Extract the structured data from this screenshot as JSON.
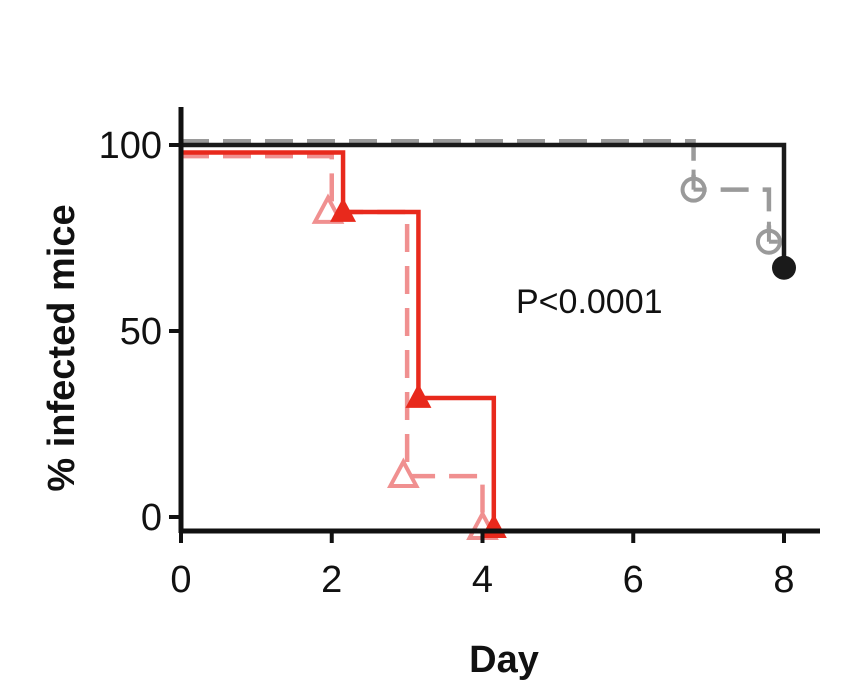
{
  "chart_data": {
    "type": "line",
    "subtype": "kaplan-meier step",
    "xlabel": "Day",
    "ylabel": "% infected mice",
    "xlim": [
      0,
      8.5
    ],
    "ylim": [
      -4,
      110
    ],
    "xticks": [
      "0",
      "2",
      "4",
      "6",
      "8"
    ],
    "yticks": [
      "0",
      "50",
      "100"
    ],
    "annotation": "P<0.0001",
    "grid": false,
    "legend": "none",
    "series": [
      {
        "color": "#9a9a9a",
        "line_style": "dashed",
        "marker": "circle-open-censored",
        "steps": [
          [
            0,
            101
          ],
          [
            6.8,
            101
          ],
          [
            6.8,
            88
          ],
          [
            7.8,
            88
          ],
          [
            7.8,
            74
          ]
        ],
        "markers": [
          [
            6.8,
            88
          ],
          [
            7.8,
            74
          ]
        ]
      },
      {
        "color": "#1a1a1a",
        "line_style": "solid",
        "marker": "circle-filled",
        "steps": [
          [
            0,
            100
          ],
          [
            8,
            100
          ],
          [
            8,
            67
          ]
        ],
        "markers": [
          [
            8,
            67
          ]
        ]
      },
      {
        "color": "#f09090",
        "line_style": "dashed",
        "marker": "triangle-open",
        "steps": [
          [
            0,
            97
          ],
          [
            2,
            97
          ],
          [
            2,
            82
          ],
          [
            3,
            82
          ],
          [
            3,
            11
          ],
          [
            4,
            11
          ],
          [
            4,
            -3
          ]
        ],
        "markers": [
          [
            1.95,
            82
          ],
          [
            2.95,
            11
          ],
          [
            4,
            -3
          ]
        ]
      },
      {
        "color": "#e8291c",
        "line_style": "solid",
        "marker": "triangle-filled",
        "steps": [
          [
            0,
            98
          ],
          [
            2.15,
            98
          ],
          [
            2.15,
            82
          ],
          [
            3.15,
            82
          ],
          [
            3.15,
            32
          ],
          [
            4.15,
            32
          ],
          [
            4.15,
            -3
          ]
        ],
        "markers": [
          [
            2.15,
            82
          ],
          [
            3.15,
            32
          ],
          [
            4.15,
            -3
          ]
        ]
      }
    ]
  }
}
